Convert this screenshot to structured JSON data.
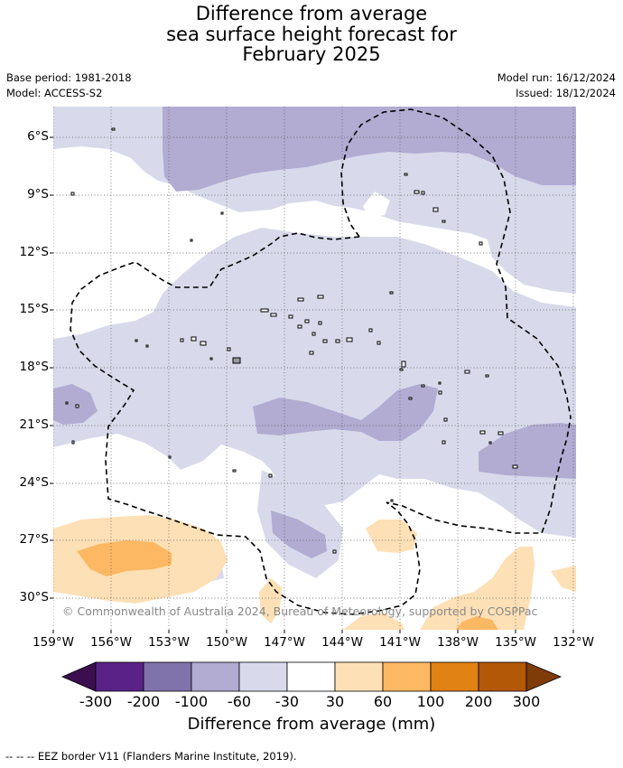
{
  "title": {
    "line1": "Difference from average",
    "line2": "sea surface height forecast for",
    "line3": "February 2025"
  },
  "meta": {
    "base_period": "Base period: 1981-2018",
    "model": "Model: ACCESS-S2",
    "model_run": "Model run: 16/12/2024",
    "issued": "Issued: 18/12/2024"
  },
  "map": {
    "lon_range": [
      -160,
      -132
    ],
    "lat_range": [
      -31.5,
      -4.5
    ],
    "lat_ticks": [
      "6°S",
      "9°S",
      "12°S",
      "15°S",
      "18°S",
      "21°S",
      "24°S",
      "27°S",
      "30°S"
    ],
    "lon_ticks": [
      "159°W",
      "156°W",
      "153°W",
      "150°W",
      "147°W",
      "144°W",
      "141°W",
      "138°W",
      "135°W",
      "132°W"
    ],
    "gridlines": "dotted",
    "eez_border": "dashed"
  },
  "copyright": "© Commonwealth of Australia 2024, Bureau of Meteorology, supported by COSPPac",
  "colorbar": {
    "title": "Difference from average (mm)",
    "ticks": [
      "-300",
      "-200",
      "-100",
      "-60",
      "-30",
      "30",
      "60",
      "100",
      "200",
      "300"
    ],
    "colors": [
      "#3b0f4f",
      "#5a2287",
      "#8073ac",
      "#b2abd2",
      "#d8daeb",
      "#ffffff",
      "#fee0b6",
      "#fdb863",
      "#e08214",
      "#b35806",
      "#7f3b08"
    ]
  },
  "footnote": "--  --  -- EEZ border V11 (Flanders Marine Institute, 2019)."
}
